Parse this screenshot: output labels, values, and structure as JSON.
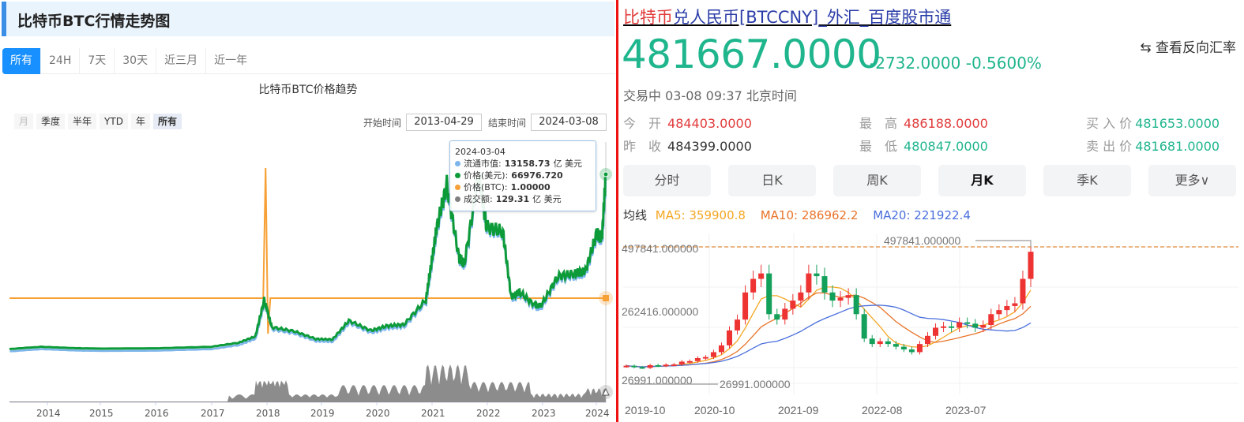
{
  "left": {
    "header_title": "比特币BTC行情走势图",
    "period_tabs": [
      {
        "label": "所有",
        "active": true
      },
      {
        "label": "24H",
        "active": false
      },
      {
        "label": "7天",
        "active": false
      },
      {
        "label": "30天",
        "active": false
      },
      {
        "label": "近三月",
        "active": false
      },
      {
        "label": "近一年",
        "active": false
      }
    ],
    "chart_title": "比特币BTC价格趋势",
    "range_buttons": [
      {
        "label": "月",
        "state": "disabled"
      },
      {
        "label": "季度",
        "state": "normal"
      },
      {
        "label": "半年",
        "state": "normal"
      },
      {
        "label": "YTD",
        "state": "normal"
      },
      {
        "label": "年",
        "state": "normal"
      },
      {
        "label": "所有",
        "state": "selected"
      }
    ],
    "start_label": "开始时间",
    "start_value": "2013-04-29",
    "end_label": "结束时间",
    "end_value": "2024-03-08",
    "tooltip": {
      "date": "2024-03-04",
      "rows": [
        {
          "label": "流通市值: ",
          "value": "13158.73",
          "unit": "亿 美元",
          "color": "#7cb5ec"
        },
        {
          "label": "价格(美元): ",
          "value": "66976.720",
          "unit": "",
          "color": "#0d9b3a"
        },
        {
          "label": "价格(BTC): ",
          "value": "1.00000",
          "unit": "",
          "color": "#f7a035"
        },
        {
          "label": "成交额: ",
          "value": "129.31",
          "unit": "亿 美元",
          "color": "#808080"
        }
      ]
    }
  },
  "right": {
    "title_part1": "比特币",
    "title_part2": "兑人民币[BTCCNY]_外汇_百度股市通",
    "price": "481667.0000",
    "change": "-2732.0000",
    "change_pct": "-0.5600%",
    "reverse_rate": "⇆ 查看反向汇率",
    "status": "交易中  03-08 09:37  北京时间",
    "quotes": [
      {
        "label": "今　开",
        "value": "484403.0000",
        "color": "#e23b3b"
      },
      {
        "label": "昨　收",
        "value": "484399.0000",
        "color": "#333333"
      },
      {
        "label": "最　高",
        "value": "486188.0000",
        "color": "#e23b3b"
      },
      {
        "label": "最　低",
        "value": "480847.0000",
        "color": "#1fb58d"
      },
      {
        "label": "买 入 价",
        "value": "481653.0000",
        "color": "#1fb58d"
      },
      {
        "label": "卖 出 价",
        "value": "481681.0000",
        "color": "#1fb58d"
      }
    ],
    "kline_tabs": [
      {
        "label": "分时",
        "selected": false
      },
      {
        "label": "日K",
        "selected": false
      },
      {
        "label": "周K",
        "selected": false
      },
      {
        "label": "月K",
        "selected": true
      },
      {
        "label": "季K",
        "selected": false
      },
      {
        "label": "更多∨",
        "selected": false
      }
    ],
    "ma_label": "均线",
    "ma": [
      {
        "text": "MA5: 359900.8",
        "color": "#f5a623"
      },
      {
        "text": "MA10: 286962.2",
        "color": "#e8742a"
      },
      {
        "text": "MA20: 221922.4",
        "color": "#4a6fdc"
      }
    ]
  },
  "chart_data": [
    {
      "type": "line",
      "title": "比特币BTC价格趋势",
      "x_ticks": [
        "2014",
        "2015",
        "2016",
        "2017",
        "2018",
        "2019",
        "2020",
        "2021",
        "2022",
        "2023",
        "2024"
      ],
      "series": [
        {
          "name": "价格(美元)",
          "color": "#0d9b3a",
          "x": [
            2013.33,
            2013.9,
            2014.5,
            2015,
            2016,
            2017,
            2017.5,
            2017.8,
            2017.96,
            2018.1,
            2018.5,
            2018.9,
            2019.2,
            2019.5,
            2019.9,
            2020.2,
            2020.5,
            2020.9,
            2021.0,
            2021.1,
            2021.28,
            2021.5,
            2021.6,
            2021.86,
            2022.0,
            2022.3,
            2022.45,
            2022.6,
            2022.9,
            2023.0,
            2023.3,
            2023.6,
            2023.8,
            2024.0,
            2024.1,
            2024.17
          ],
          "y": [
            140,
            1000,
            500,
            300,
            430,
            1000,
            2600,
            5000,
            19000,
            8500,
            7000,
            4000,
            3800,
            11000,
            7200,
            9000,
            9500,
            19000,
            33000,
            47000,
            63000,
            35000,
            33000,
            67000,
            47000,
            45000,
            20000,
            22000,
            16500,
            17000,
            28000,
            29000,
            30000,
            44000,
            43000,
            66977
          ]
        },
        {
          "name": "流通市值",
          "color": "#7cb5ec",
          "value_last": "13158.73亿 美元"
        },
        {
          "name": "价格(BTC)",
          "color": "#f7a035",
          "constant": 1.0,
          "spike_x": 2018.0
        },
        {
          "name": "成交额",
          "color": "#808080",
          "value_last": "129.31亿 美元"
        }
      ]
    },
    {
      "type": "candlestick",
      "title": "BTCCNY 月K",
      "x_ticks": [
        "2019-10",
        "2020-10",
        "2021-09",
        "2022-08",
        "2023-07"
      ],
      "y_labels": [
        "497841.000000",
        "262416.000000",
        "26991.000000"
      ],
      "max_marker": "497841.000000",
      "min_marker": "26991.000000",
      "ohlc_close_approx": [
        60000,
        55000,
        52000,
        62000,
        60000,
        64000,
        65000,
        75000,
        77000,
        88000,
        92000,
        110000,
        135000,
        190000,
        230000,
        330000,
        380000,
        400000,
        250000,
        230000,
        270000,
        300000,
        330000,
        400000,
        390000,
        330000,
        300000,
        310000,
        320000,
        250000,
        160000,
        140000,
        150000,
        140000,
        130000,
        120000,
        110000,
        140000,
        170000,
        200000,
        205000,
        200000,
        220000,
        215000,
        200000,
        210000,
        250000,
        265000,
        280000,
        290000,
        380000,
        480000
      ],
      "ma5_last": 359900.8,
      "ma10_last": 286962.2,
      "ma20_last": 221922.4
    }
  ]
}
